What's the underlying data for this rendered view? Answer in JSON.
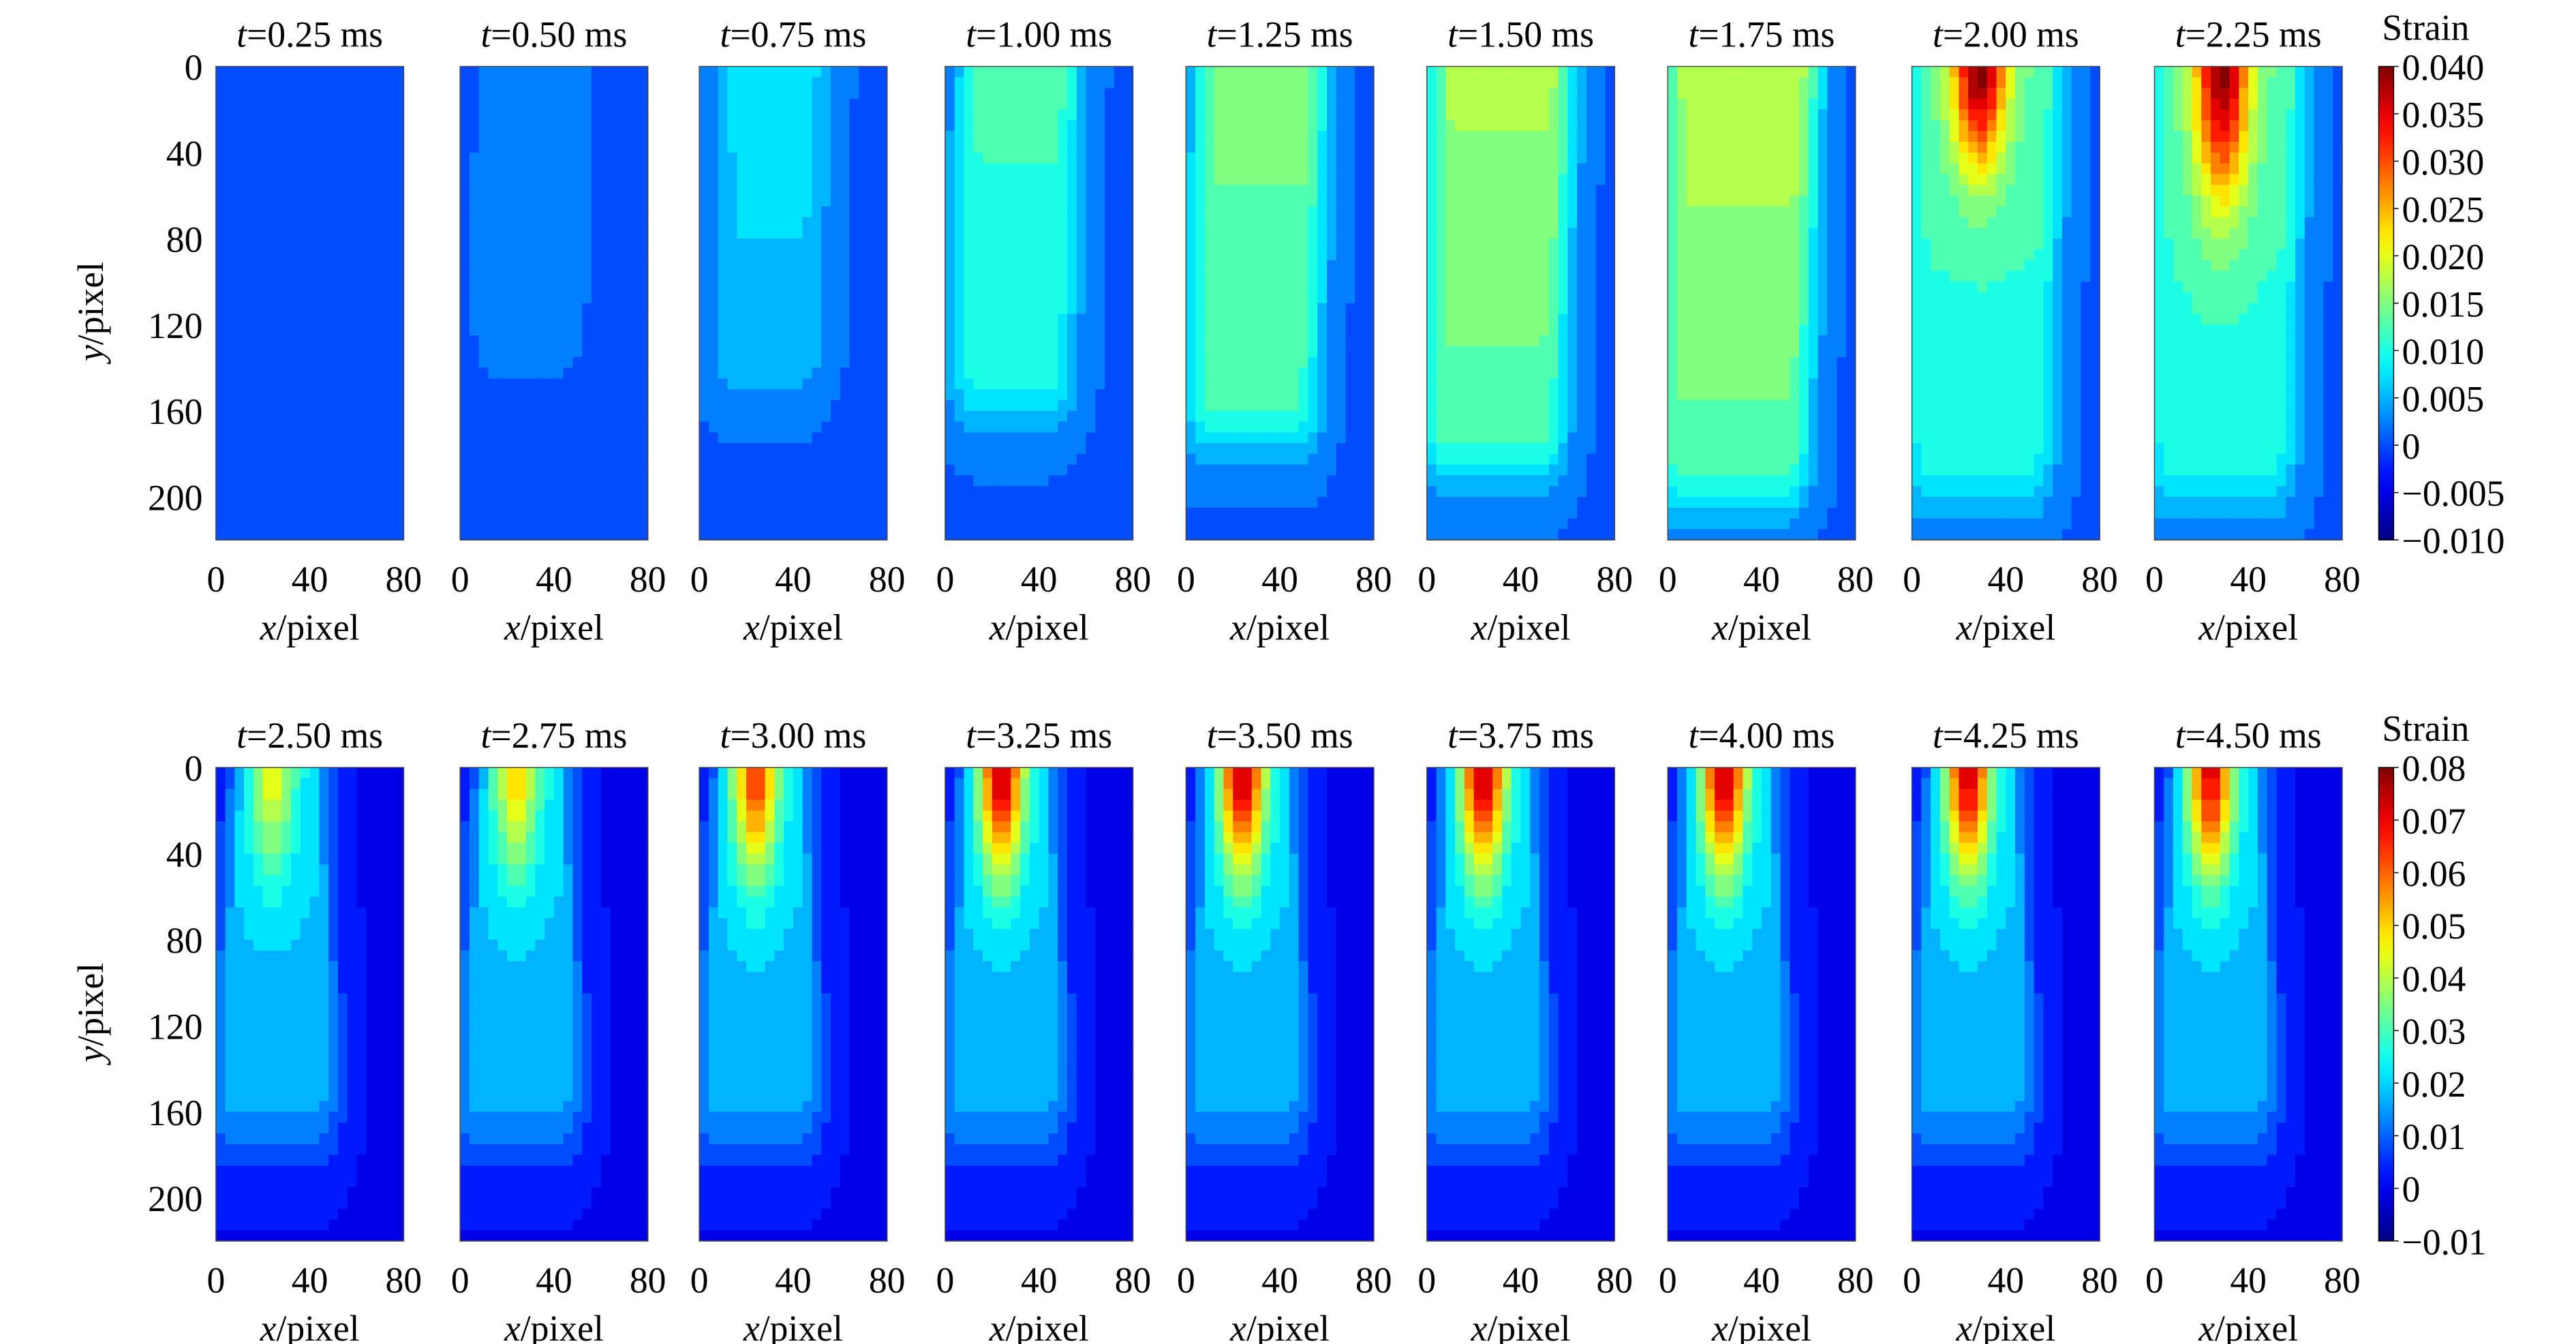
{
  "figure": {
    "rows": [
      {
        "colorbar": {
          "title": "Strain",
          "ticks": [
            "0.040",
            "0.035",
            "0.030",
            "0.025",
            "0.020",
            "0.015",
            "0.010",
            "0.005",
            "0",
            "−0.005",
            "−0.010"
          ],
          "min": -0.01,
          "max": 0.04
        },
        "panels": [
          {
            "t_var": "t",
            "t_rest": "=0.25 ms"
          },
          {
            "t_var": "t",
            "t_rest": "=0.50 ms"
          },
          {
            "t_var": "t",
            "t_rest": "=0.75 ms"
          },
          {
            "t_var": "t",
            "t_rest": "=1.00 ms"
          },
          {
            "t_var": "t",
            "t_rest": "=1.25 ms"
          },
          {
            "t_var": "t",
            "t_rest": "=1.50 ms"
          },
          {
            "t_var": "t",
            "t_rest": "=1.75 ms"
          },
          {
            "t_var": "t",
            "t_rest": "=2.00 ms"
          },
          {
            "t_var": "t",
            "t_rest": "=2.25 ms"
          }
        ]
      },
      {
        "colorbar": {
          "title": "Strain",
          "ticks": [
            "0.08",
            "0.07",
            "0.06",
            "0.05",
            "0.04",
            "0.03",
            "0.02",
            "0.01",
            "0",
            "−0.01"
          ],
          "min": -0.01,
          "max": 0.08
        },
        "panels": [
          {
            "t_var": "t",
            "t_rest": "=2.50 ms"
          },
          {
            "t_var": "t",
            "t_rest": "=2.75 ms"
          },
          {
            "t_var": "t",
            "t_rest": "=3.00 ms"
          },
          {
            "t_var": "t",
            "t_rest": "=3.25 ms"
          },
          {
            "t_var": "t",
            "t_rest": "=3.50 ms"
          },
          {
            "t_var": "t",
            "t_rest": "=3.75 ms"
          },
          {
            "t_var": "t",
            "t_rest": "=4.00 ms"
          },
          {
            "t_var": "t",
            "t_rest": "=4.25 ms"
          },
          {
            "t_var": "t",
            "t_rest": "=4.50 ms"
          }
        ]
      }
    ],
    "x_axis": {
      "var": "x",
      "rest": "/pixel",
      "ticks": [
        "0",
        "40",
        "80"
      ]
    },
    "y_axis": {
      "var": "y",
      "rest": "/pixel",
      "ticks": [
        "0",
        "40",
        "80",
        "120",
        "160",
        "200"
      ]
    }
  },
  "chart_data": {
    "type": "heatmap",
    "title": "",
    "colormap": "jet",
    "xlabel": "x/pixel",
    "ylabel": "y/pixel",
    "xlim": [
      0,
      80
    ],
    "ylim": [
      220,
      0
    ],
    "row_colorbar_ranges": [
      [
        -0.01,
        0.04
      ],
      [
        -0.01,
        0.08
      ]
    ],
    "panels_times_ms": [
      0.25,
      0.5,
      0.75,
      1.0,
      1.25,
      1.5,
      1.75,
      2.0,
      2.25,
      2.5,
      2.75,
      3.0,
      3.25,
      3.5,
      3.75,
      4.0,
      4.25,
      4.5
    ],
    "approx_peak_strain": [
      0.0,
      0.002,
      0.007,
      0.012,
      0.015,
      0.017,
      0.018,
      0.04,
      0.04,
      0.045,
      0.05,
      0.065,
      0.075,
      0.076,
      0.076,
      0.076,
      0.074,
      0.072
    ]
  }
}
